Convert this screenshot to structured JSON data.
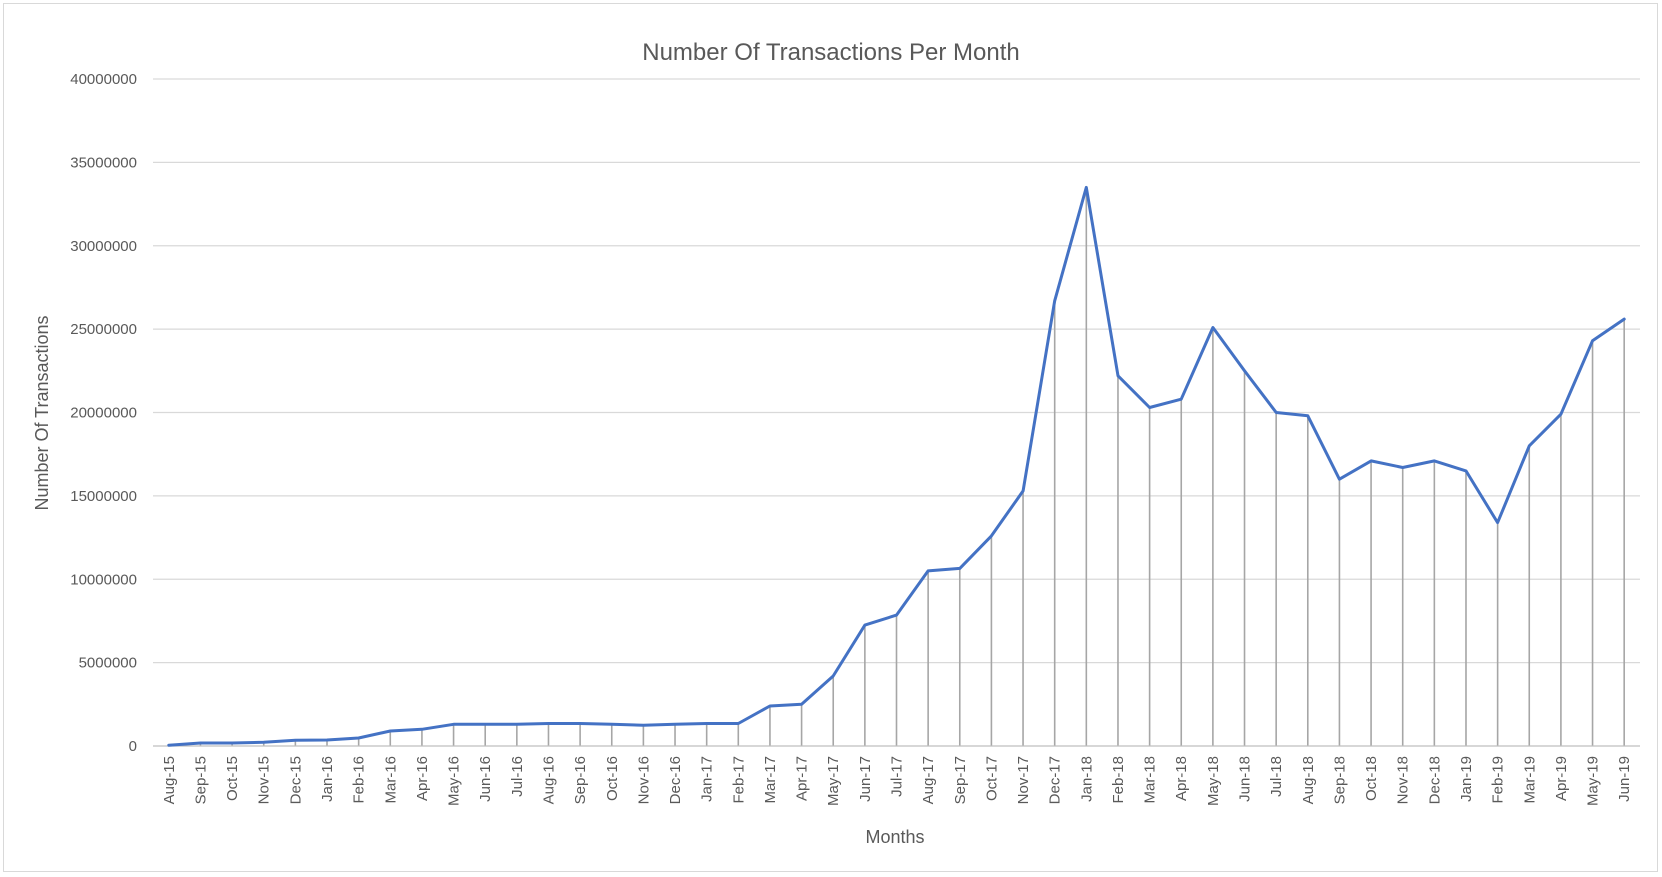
{
  "chart_data": {
    "type": "line",
    "title": "Number Of Transactions Per Month",
    "xlabel": "Months",
    "ylabel": "Number Of Transactions",
    "ylim": [
      0,
      40000000
    ],
    "yticks": [
      "0",
      "5000000",
      "10000000",
      "15000000",
      "20000000",
      "25000000",
      "30000000",
      "35000000",
      "40000000"
    ],
    "grid": true,
    "drop_lines": true,
    "series_color": "#4472c4",
    "categories": [
      "Aug-15",
      "Sep-15",
      "Oct-15",
      "Nov-15",
      "Dec-15",
      "Jan-16",
      "Feb-16",
      "Mar-16",
      "Apr-16",
      "May-16",
      "Jun-16",
      "Jul-16",
      "Aug-16",
      "Sep-16",
      "Oct-16",
      "Nov-16",
      "Dec-16",
      "Jan-17",
      "Feb-17",
      "Mar-17",
      "Apr-17",
      "May-17",
      "Jun-17",
      "Jul-17",
      "Aug-17",
      "Sep-17",
      "Oct-17",
      "Nov-17",
      "Dec-17",
      "Jan-18",
      "Feb-18",
      "Mar-18",
      "Apr-18",
      "May-18",
      "Jun-18",
      "Jul-18",
      "Aug-18",
      "Sep-18",
      "Oct-18",
      "Nov-18",
      "Dec-18",
      "Jan-19",
      "Feb-19",
      "Mar-19",
      "Apr-19",
      "May-19",
      "Jun-19"
    ],
    "series": [
      {
        "values": [
          50000,
          180000,
          180000,
          220000,
          350000,
          360000,
          480000,
          900000,
          1000000,
          1300000,
          1300000,
          1300000,
          1350000,
          1350000,
          1300000,
          1250000,
          1300000,
          1350000,
          1350000,
          2400000,
          2500000,
          4200000,
          7250000,
          7850000,
          10500000,
          10650000,
          12600000,
          15300000,
          26700000,
          33500000,
          22200000,
          20300000,
          20800000,
          25100000,
          22500000,
          20000000,
          19800000,
          16000000,
          17100000,
          16700000,
          17100000,
          16500000,
          13400000,
          18000000,
          19900000,
          24300000,
          25600000
        ]
      }
    ]
  }
}
